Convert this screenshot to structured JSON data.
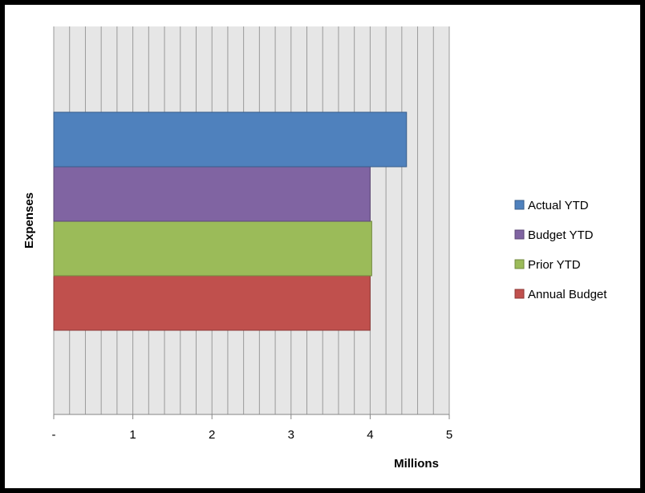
{
  "chart_data": {
    "type": "bar",
    "orientation": "horizontal",
    "categories": [
      "Expenses"
    ],
    "series": [
      {
        "name": "Annual Budget",
        "values": [
          4.0
        ],
        "color": "#C0504D",
        "border": "#8C3836"
      },
      {
        "name": "Prior YTD",
        "values": [
          4.02
        ],
        "color": "#9BBB59",
        "border": "#71893F"
      },
      {
        "name": "Budget YTD",
        "values": [
          4.0
        ],
        "color": "#8064A2",
        "border": "#5C4776"
      },
      {
        "name": "Actual YTD",
        "values": [
          4.46
        ],
        "color": "#4F81BD",
        "border": "#385D8A"
      }
    ],
    "xlabel": "Millions",
    "ylabel": "Expenses",
    "xlim": [
      0,
      5
    ],
    "x_ticks": [
      {
        "value": 0,
        "label": "-"
      },
      {
        "value": 1,
        "label": "1"
      },
      {
        "value": 2,
        "label": "2"
      },
      {
        "value": 3,
        "label": "3"
      },
      {
        "value": 4,
        "label": "4"
      },
      {
        "value": 5,
        "label": "5"
      }
    ],
    "minor_grid_step": 0.2,
    "grid": true,
    "legend": {
      "placement": "right",
      "order": [
        "Actual YTD",
        "Budget YTD",
        "Prior YTD",
        "Annual Budget"
      ]
    },
    "plot_background": "#E6E6E6",
    "grid_color": "#9A9A9A"
  }
}
